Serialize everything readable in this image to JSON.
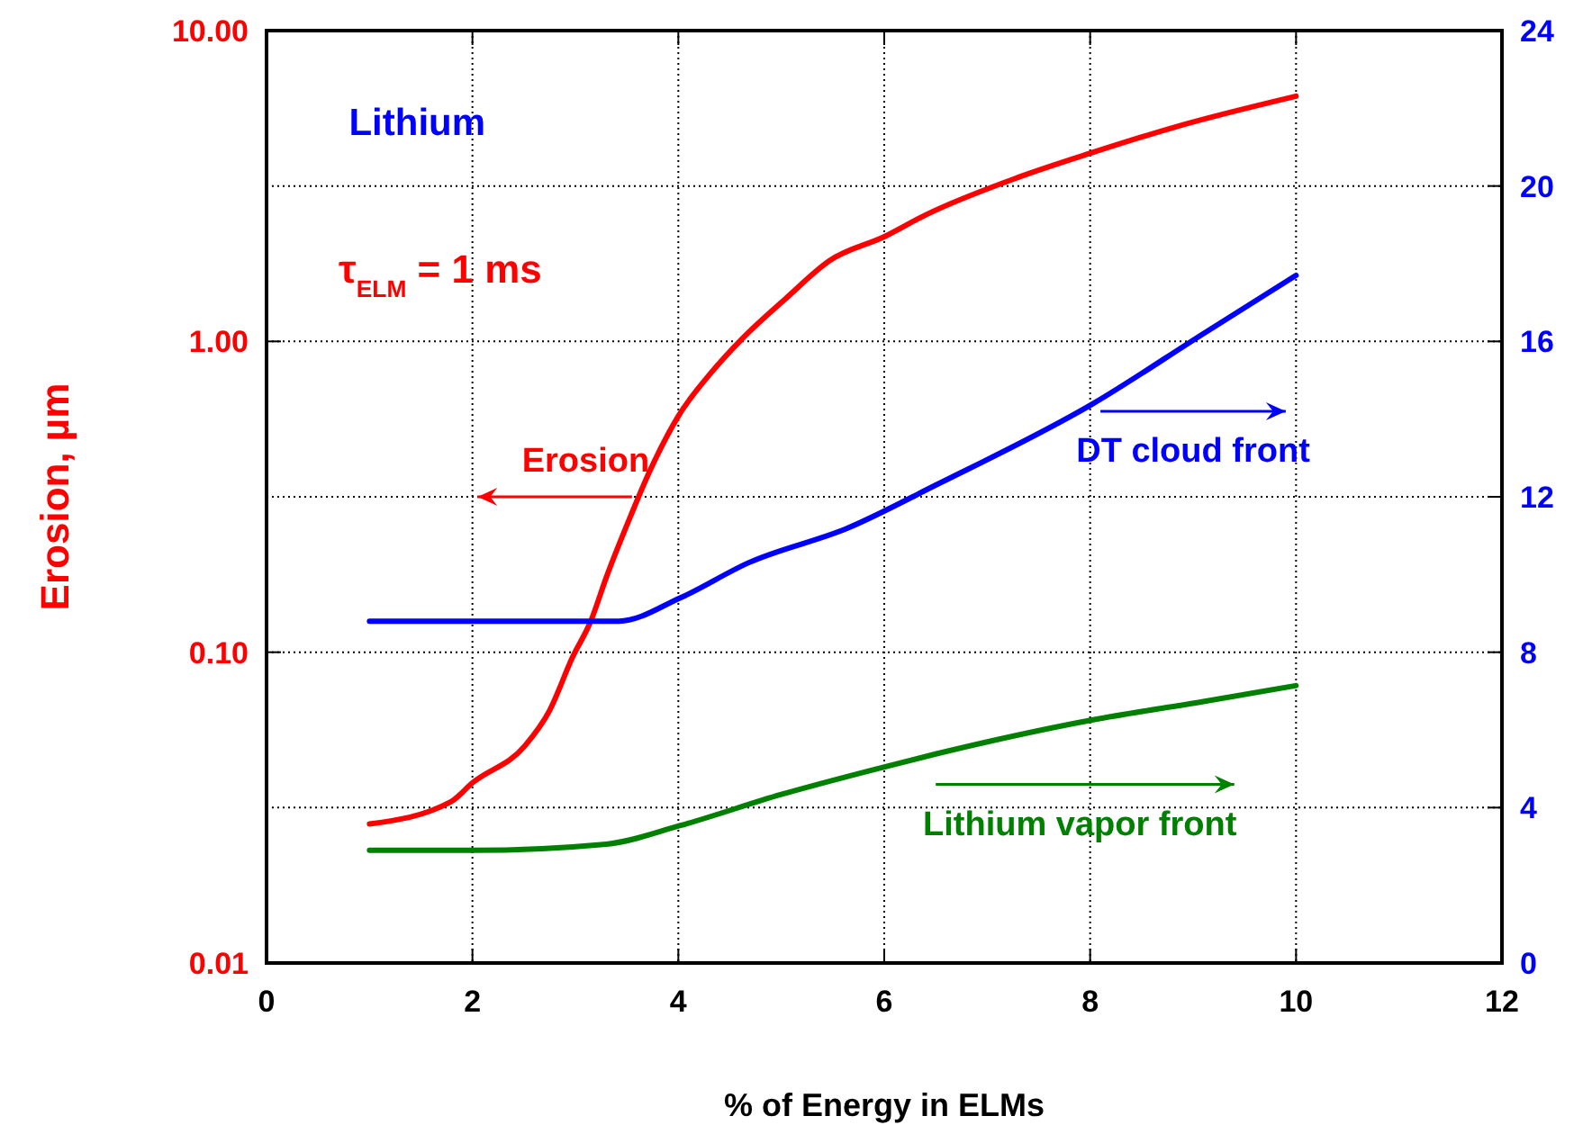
{
  "chart_data": {
    "type": "line",
    "xlabel": "% of Energy in ELMs",
    "ylabel": "Erosion, µm",
    "xlim": [
      0,
      12
    ],
    "xticks": [
      0,
      2,
      4,
      6,
      8,
      10,
      12
    ],
    "ylim": [
      0.01,
      10
    ],
    "yticks": [
      {
        "value": 0.01,
        "label": "0.01"
      },
      {
        "value": 0.1,
        "label": "0.10"
      },
      {
        "value": 1,
        "label": "1.00"
      },
      {
        "value": 10,
        "label": "10.00"
      }
    ],
    "log": "y",
    "y2lim": [
      0,
      24
    ],
    "y2ticks": [
      0,
      4,
      8,
      12,
      16,
      20,
      24
    ],
    "grid": true,
    "legend": "right",
    "marker": "none",
    "line_style": "solid",
    "annotations": [
      "Lithium",
      "τ$_{ELM}$ = 1 ms"
    ],
    "series": [
      {
        "name": "Erosion",
        "color": "#ff0000",
        "x": [
          1,
          1.79,
          2,
          2.51,
          2.75,
          2.97,
          3.15,
          3.3,
          3.54,
          3.72,
          4,
          4.32,
          4.62,
          5.05,
          5.47,
          6.01,
          6.41,
          7.31,
          8.03,
          8.82,
          10
        ],
        "values": [
          0.028,
          0.033,
          0.038,
          0.05,
          0.065,
          0.096,
          0.126,
          0.174,
          0.276,
          0.381,
          0.575,
          0.794,
          1.02,
          1.38,
          1.82,
          2.18,
          2.56,
          3.38,
          4.06,
          4.89,
          6.15
        ]
      },
      {
        "name": "DT cloud front",
        "color": "#0000ff",
        "axis": "y2",
        "x": [
          1,
          2,
          3,
          3.42,
          4.02,
          4.68,
          5.65,
          6.5,
          8.03,
          9.1,
          10
        ],
        "values": [
          8.8,
          8.8,
          8.8,
          8.8,
          9.4,
          10.3,
          11.2,
          12.3,
          14.4,
          16.2,
          17.7
        ]
      },
      {
        "name": "Lithium vapor front",
        "color": "#008000",
        "axis": "y2",
        "x": [
          1,
          2,
          3.3,
          4.02,
          5,
          5.9,
          6.5,
          8.03,
          9.1,
          10
        ],
        "values": [
          2.9,
          2.9,
          3.06,
          3.54,
          4.34,
          4.98,
          5.38,
          6.26,
          6.73,
          7.14
        ]
      }
    ]
  }
}
